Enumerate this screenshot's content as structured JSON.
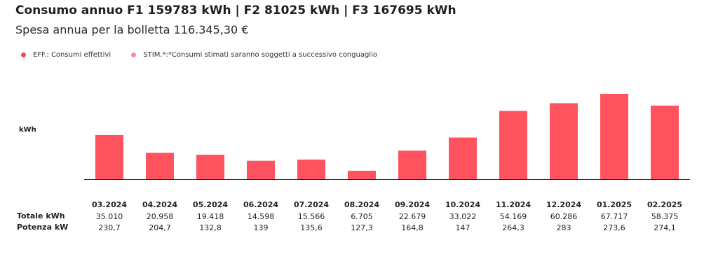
{
  "header": {
    "title": "Consumo annuo F1 159783 kWh | F2 81025 kWh | F3 167695 kWh",
    "subtitle": "Spesa annua per la bolletta 116.345,30 €"
  },
  "legend": [
    {
      "label": "EFF.: Consumi effettivi",
      "color": "#f24a57"
    },
    {
      "label": "STIM.*:*Consumi stimati saranno soggetti a successivo conguaglio",
      "color": "#f48d99"
    }
  ],
  "chart_data": {
    "type": "bar",
    "ylabel": "kWh",
    "bar_color": "#ff5460",
    "categories": [
      "03.2024",
      "04.2024",
      "05.2024",
      "06.2024",
      "07.2024",
      "08.2024",
      "09.2024",
      "10.2024",
      "11.2024",
      "12.2024",
      "01.2025",
      "02.2025"
    ],
    "values": [
      35010,
      20958,
      19418,
      14598,
      15566,
      6705,
      22679,
      33022,
      54169,
      60286,
      67717,
      58375
    ],
    "ylim": [
      0,
      67717
    ],
    "rows": [
      {
        "label": "Totale kWh",
        "values": [
          "35.010",
          "20.958",
          "19.418",
          "14.598",
          "15.566",
          "6.705",
          "22.679",
          "33.022",
          "54.169",
          "60.286",
          "67.717",
          "58.375"
        ]
      },
      {
        "label": "Potenza kW",
        "values": [
          "230,7",
          "204,7",
          "132,8",
          "139",
          "135,6",
          "127,3",
          "164,8",
          "147",
          "264,3",
          "283",
          "273,6",
          "274,1"
        ]
      }
    ]
  }
}
